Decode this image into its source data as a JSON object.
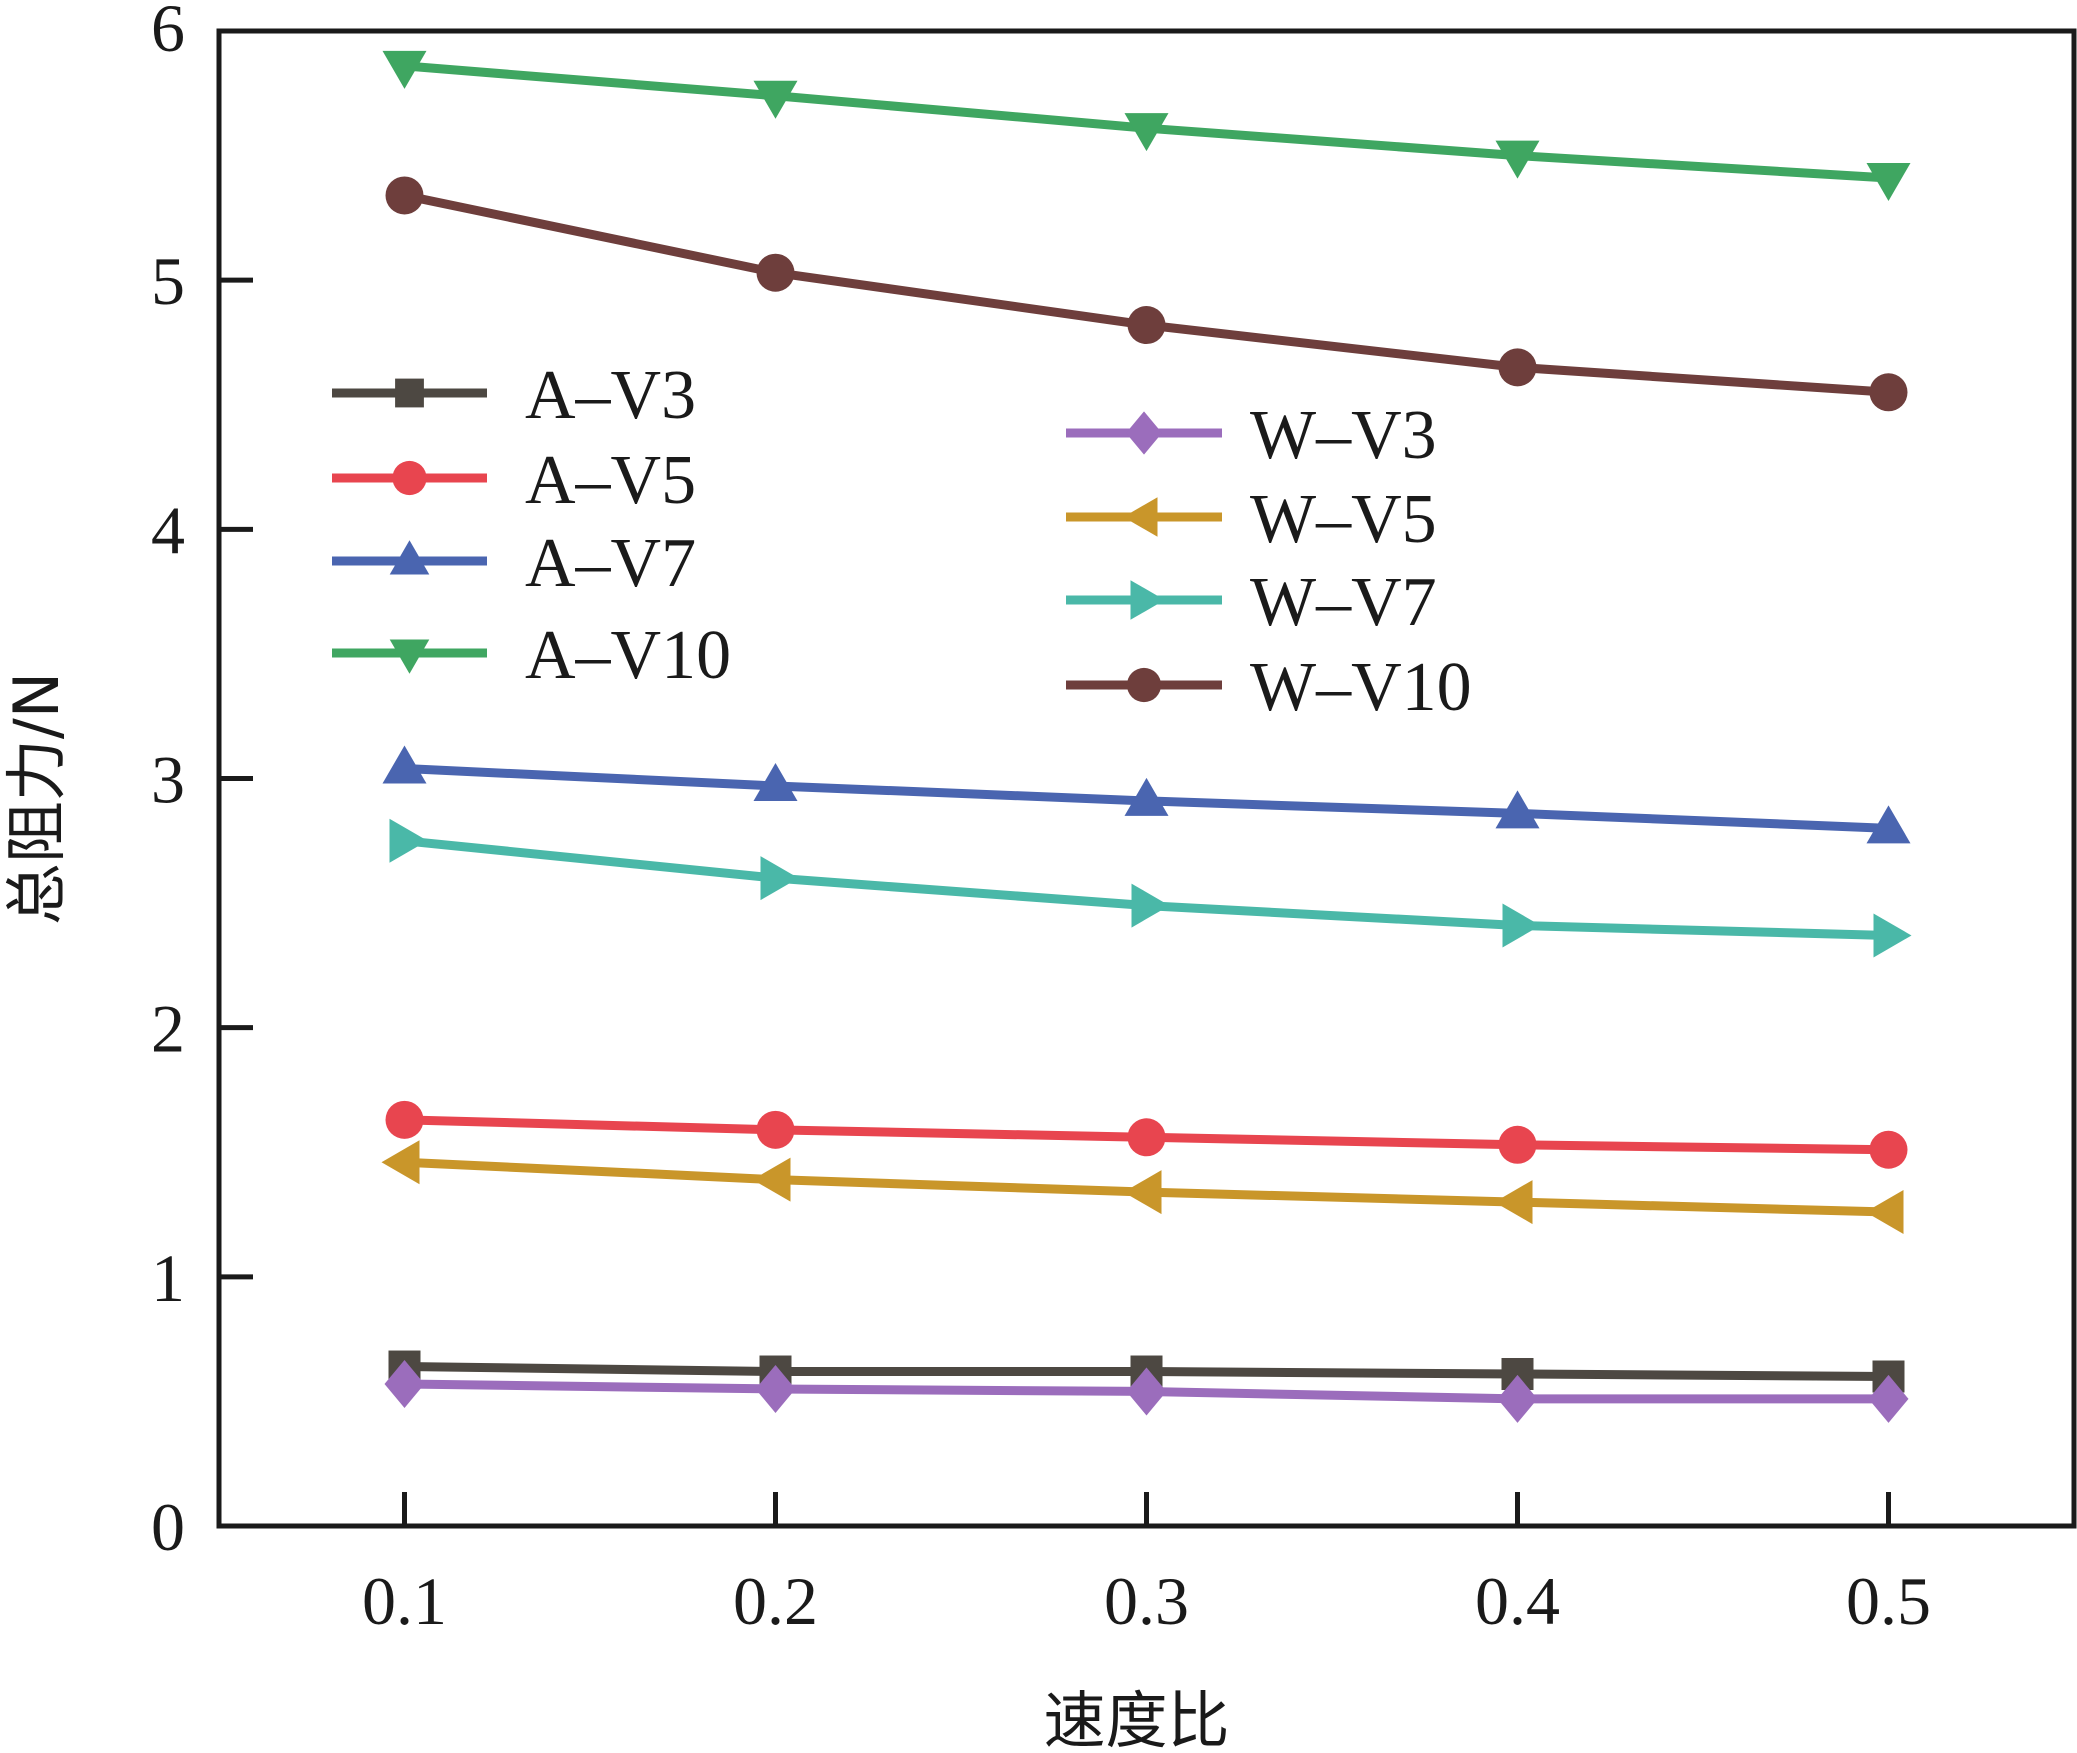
{
  "chart_data": {
    "type": "line",
    "title": "",
    "xlabel": "速度比",
    "ylabel": "总阻力/N",
    "x": [
      0.1,
      0.2,
      0.3,
      0.4,
      0.5
    ],
    "xlim": [
      0.05,
      0.55
    ],
    "ylim": [
      0,
      6
    ],
    "xticks": [
      "0.1",
      "0.2",
      "0.3",
      "0.4",
      "0.5"
    ],
    "yticks": [
      "0",
      "1",
      "2",
      "3",
      "4",
      "5",
      "6"
    ],
    "grid": false,
    "legend_placement": "two groups: upper-left and upper-center",
    "series": [
      {
        "name": "A–V3",
        "color": "#4d4842",
        "marker": "square",
        "legend_group": 0,
        "values": [
          0.64,
          0.62,
          0.62,
          0.61,
          0.6
        ]
      },
      {
        "name": "A–V5",
        "color": "#e8454f",
        "marker": "circle",
        "legend_group": 0,
        "values": [
          1.63,
          1.59,
          1.56,
          1.53,
          1.51
        ]
      },
      {
        "name": "A–V7",
        "color": "#4a65b0",
        "marker": "triangle-up",
        "legend_group": 0,
        "values": [
          3.04,
          2.97,
          2.91,
          2.86,
          2.8
        ]
      },
      {
        "name": "A–V10",
        "color": "#3fa661",
        "marker": "triangle-down",
        "legend_group": 0,
        "values": [
          5.86,
          5.74,
          5.61,
          5.5,
          5.41
        ]
      },
      {
        "name": "W–V3",
        "color": "#9b6dbc",
        "marker": "diamond",
        "legend_group": 1,
        "values": [
          0.57,
          0.55,
          0.54,
          0.51,
          0.51
        ]
      },
      {
        "name": "W–V5",
        "color": "#c9962a",
        "marker": "triangle-left",
        "legend_group": 1,
        "values": [
          1.46,
          1.39,
          1.34,
          1.3,
          1.26
        ]
      },
      {
        "name": "W–V7",
        "color": "#4ab8a8",
        "marker": "triangle-right",
        "legend_group": 1,
        "values": [
          2.75,
          2.6,
          2.49,
          2.41,
          2.37
        ]
      },
      {
        "name": "W–V10",
        "color": "#6e3e3c",
        "marker": "circle",
        "legend_group": 1,
        "values": [
          5.34,
          5.03,
          4.82,
          4.65,
          4.55
        ]
      }
    ]
  }
}
